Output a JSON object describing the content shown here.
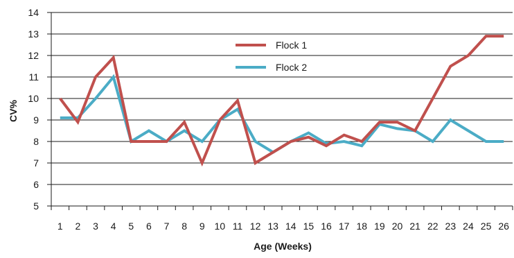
{
  "chart_data": {
    "type": "line",
    "title": "",
    "xlabel": "Age (Weeks)",
    "ylabel": "CV%",
    "ylim": [
      5,
      14
    ],
    "yticks": [
      "5",
      "6",
      "7",
      "8",
      "9",
      "10",
      "11",
      "12",
      "13",
      "14"
    ],
    "categories": [
      "1",
      "2",
      "3",
      "4",
      "5",
      "6",
      "7",
      "8",
      "9",
      "10",
      "11",
      "12",
      "13",
      "14",
      "15",
      "16",
      "17",
      "18",
      "19",
      "20",
      "21",
      "22",
      "23",
      "24",
      "25",
      "26"
    ],
    "grid": "horizontal",
    "legend_position": "top-center-right",
    "series": [
      {
        "name": "Flock 1",
        "color": "#c0504d",
        "values": [
          10.0,
          8.9,
          11.0,
          11.9,
          8.0,
          8.0,
          8.0,
          8.9,
          7.0,
          9.0,
          9.9,
          7.0,
          7.5,
          8.0,
          8.2,
          7.8,
          8.3,
          8.0,
          8.9,
          8.9,
          8.5,
          10.0,
          11.5,
          12.0,
          12.9,
          12.9
        ]
      },
      {
        "name": "Flock 2",
        "color": "#4bacc6",
        "values": [
          9.1,
          9.1,
          10.0,
          11.0,
          8.0,
          8.5,
          8.0,
          8.5,
          8.0,
          9.0,
          9.5,
          8.0,
          7.5,
          8.0,
          8.4,
          7.9,
          8.0,
          7.8,
          8.8,
          8.6,
          8.5,
          8.0,
          9.0,
          8.5,
          8.0,
          8.0
        ]
      }
    ]
  }
}
